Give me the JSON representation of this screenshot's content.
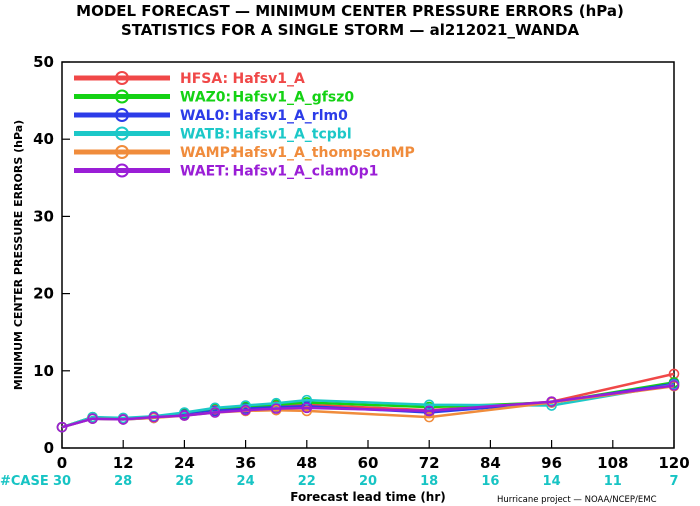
{
  "title_line1": "MODEL FORECAST — MINIMUM CENTER PRESSURE ERRORS (hPa)",
  "title_line2": "STATISTICS FOR A SINGLE STORM — al212021_WANDA",
  "credit": "Hurricane project — NOAA/NCEP/EMC",
  "case_label": "#CASE",
  "case_color": "#17c4c4",
  "chart_data": {
    "type": "line",
    "xlabel": "Forecast lead time (hr)",
    "ylabel": "MINIMUM CENTER PRESSURE ERRORS (hPa)",
    "xlim": [
      0,
      120
    ],
    "ylim": [
      0,
      50
    ],
    "xticks": [
      0,
      12,
      24,
      36,
      48,
      60,
      72,
      84,
      96,
      108,
      120
    ],
    "yticks": [
      0,
      10,
      20,
      30,
      40,
      50
    ],
    "grid": false,
    "legend_position": "top-left",
    "x": [
      0,
      6,
      12,
      18,
      24,
      30,
      36,
      42,
      48,
      72,
      96,
      120
    ],
    "case_counts": [
      {
        "x": 0,
        "n": "30"
      },
      {
        "x": 12,
        "n": "28"
      },
      {
        "x": 24,
        "n": "26"
      },
      {
        "x": 36,
        "n": "24"
      },
      {
        "x": 48,
        "n": "22"
      },
      {
        "x": 60,
        "n": "20"
      },
      {
        "x": 72,
        "n": "18"
      },
      {
        "x": 84,
        "n": "16"
      },
      {
        "x": 96,
        "n": "14"
      },
      {
        "x": 108,
        "n": "11"
      },
      {
        "x": 120,
        "n": "7"
      }
    ],
    "series": [
      {
        "code": "HFSA:",
        "name": "Hafsv1_A",
        "color": "#f04848",
        "values": [
          2.7,
          3.9,
          3.8,
          4.0,
          4.4,
          5.0,
          5.2,
          5.5,
          5.6,
          4.9,
          6.0,
          9.6
        ]
      },
      {
        "code": "WAZ0:",
        "name": "Hafsv1_A_gfsz0",
        "color": "#14d214",
        "values": [
          2.7,
          4.0,
          3.8,
          4.0,
          4.5,
          5.1,
          5.3,
          5.6,
          5.9,
          5.3,
          5.9,
          8.5
        ]
      },
      {
        "code": "WAL0:",
        "name": "Hafsv1_A_rlm0",
        "color": "#2c3ce8",
        "values": [
          2.7,
          3.8,
          3.7,
          3.9,
          4.3,
          4.8,
          5.1,
          5.3,
          5.4,
          4.6,
          5.9,
          8.3
        ]
      },
      {
        "code": "WATB:",
        "name": "Hafsv1_A_tcpbl",
        "color": "#1cc8c8",
        "values": [
          2.7,
          4.0,
          3.9,
          4.1,
          4.6,
          5.2,
          5.5,
          5.8,
          6.2,
          5.6,
          5.5,
          8.2
        ]
      },
      {
        "code": "WAMP:",
        "name": "Hafsv1_A_thompsonMP",
        "color": "#f08c3c",
        "values": [
          2.7,
          3.8,
          3.7,
          3.9,
          4.2,
          4.6,
          4.8,
          4.9,
          4.8,
          4.0,
          5.9,
          8.0
        ]
      },
      {
        "code": "WAET:",
        "name": "Hafsv1_A_clam0p1",
        "color": "#9a1ed6",
        "values": [
          2.7,
          3.8,
          3.7,
          4.0,
          4.2,
          4.6,
          4.9,
          5.1,
          5.2,
          4.8,
          6.0,
          8.1
        ]
      }
    ]
  }
}
